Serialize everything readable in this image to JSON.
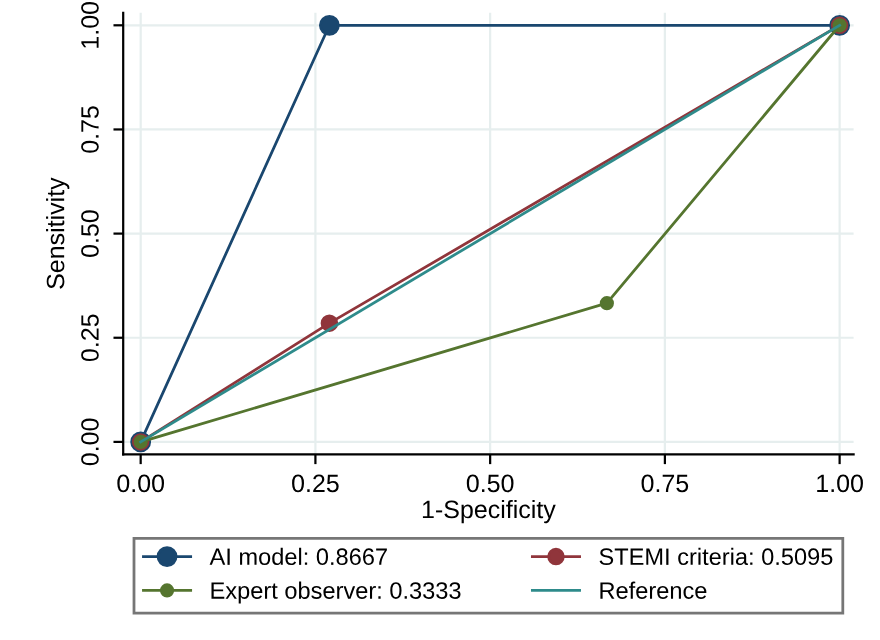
{
  "chart_data": {
    "type": "line",
    "xlabel": "1-Specificity",
    "ylabel": "Sensitivity",
    "xlim": [
      -0.025,
      1.02
    ],
    "ylim": [
      -0.03,
      1.03
    ],
    "xticks": [
      {
        "value": 0,
        "label": "0.00"
      },
      {
        "value": 0.25,
        "label": "0.25"
      },
      {
        "value": 0.5,
        "label": "0.50"
      },
      {
        "value": 0.75,
        "label": "0.75"
      },
      {
        "value": 1,
        "label": "1.00"
      }
    ],
    "yticks": [
      {
        "value": 0,
        "label": "0.00"
      },
      {
        "value": 0.25,
        "label": "0.25"
      },
      {
        "value": 0.5,
        "label": "0.50"
      },
      {
        "value": 0.75,
        "label": "0.75"
      },
      {
        "value": 1,
        "label": "1.00"
      }
    ],
    "grid": true,
    "legend": "bottom",
    "series": [
      {
        "name": "AI model: 0.8667",
        "color": "#1a476f",
        "x": [
          0,
          0.27,
          1
        ],
        "values": [
          0,
          1,
          1
        ],
        "marker": "circle"
      },
      {
        "name": "STEMI criteria: 0.5095",
        "color": "#90353b",
        "x": [
          0,
          0.27,
          1
        ],
        "values": [
          0,
          0.285,
          1
        ],
        "marker": "circle"
      },
      {
        "name": "Expert observer: 0.3333",
        "color": "#55752f",
        "x": [
          0,
          0.667,
          1
        ],
        "values": [
          0,
          0.333,
          1
        ],
        "marker": "circle"
      },
      {
        "name": "Reference",
        "color": "#2e8b8b",
        "x": [
          0,
          1
        ],
        "values": [
          0,
          1
        ],
        "marker": "none"
      }
    ]
  }
}
